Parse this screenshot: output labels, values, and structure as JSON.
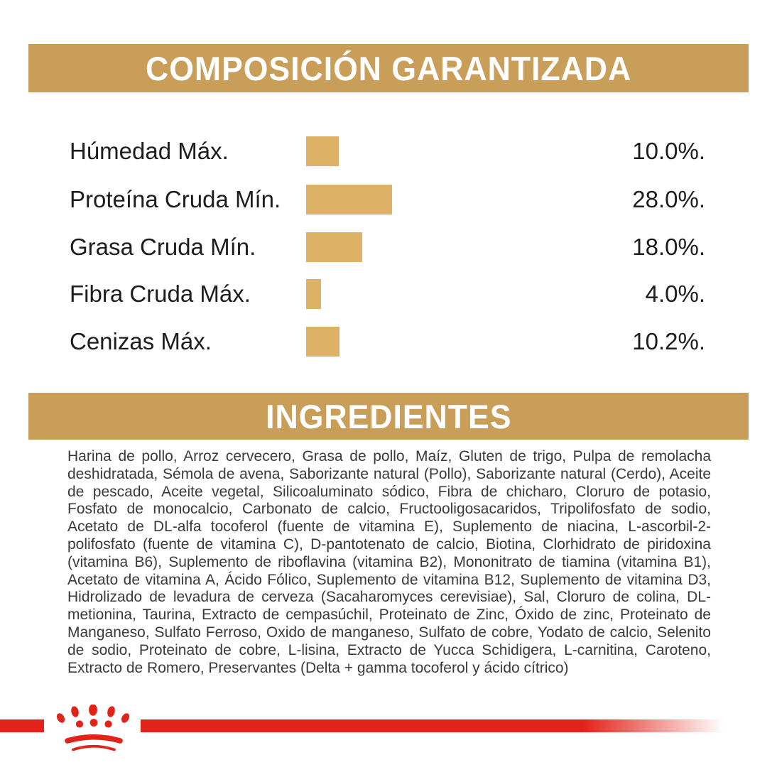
{
  "theme": {
    "banner_bg": "#C89E58",
    "banner_text_color": "#FFFFFF",
    "label_text_color": "#1D1D1D",
    "body_text_color": "#3A3A3A",
    "brand_red": "#E2231A"
  },
  "composition": {
    "title": "COMPOSICIÓN GARANTIZADA"
  },
  "chart_data": {
    "type": "bar",
    "orientation": "horizontal",
    "title": "COMPOSICIÓN GARANTIZADA",
    "categories": [
      "Húmedad Máx.",
      "Proteína Cruda Mín.",
      "Grasa Cruda Mín.",
      "Fibra Cruda Máx.",
      "Cenizas Máx."
    ],
    "values": [
      10.0,
      28.0,
      18.0,
      4.0,
      10.2
    ],
    "value_labels": [
      "10.0%.",
      "28.0%.",
      "18.0%.",
      "4.0%.",
      "10.2%."
    ],
    "unit": "%",
    "bar_color": "#DDB166",
    "grid": false,
    "legend": false
  },
  "ingredients": {
    "title": "INGREDIENTES",
    "text": "Harina de pollo, Arroz cervecero, Grasa de pollo, Maíz, Gluten de trigo, Pulpa de remolacha deshidratada, Sémola de avena, Saborizante natural (Pollo), Saborizante natural (Cerdo), Aceite de pescado, Aceite vegetal, Silicoaluminato sódico, Fibra de chicharo, Cloruro de potasio, Fosfato de monocalcio, Carbonato de calcio, Fructooligosacaridos, Tripolifosfato de sodio, Acetato de DL-alfa tocoferol (fuente de vitamina E), Suplemento de niacina, L-ascorbil-2-polifosfato (fuente de vitamina C), D-pantotenato de calcio, Biotina, Clorhidrato de piridoxina (vitamina B6), Suplemento de riboflavina (vitamina B2), Mononitrato de tiamina (vitamina B1), Acetato de vitamina A, Ácido Fólico, Suplemento de vitamina B12, Suplemento de vitamina D3, Hidrolizado de levadura de cerveza (Sacaharomyces cerevisiae), Sal, Cloruro de colina, DL-metionina, Taurina, Extracto de cempasúchil, Proteinato de Zinc, Óxido de zinc, Proteinato de Manganeso, Sulfato Ferroso, Oxido de manganeso, Sulfato de cobre, Yodato de calcio, Selenito de sodio, Proteinato de cobre, L-lisina, Extracto de Yucca Schidigera, L-carnitina, Caroteno, Extracto de Romero, Preservantes (Delta + gamma tocoferol y ácido cítrico)"
  },
  "footer": {
    "logo_icon": "royal-canin-paw-icon",
    "stripe_color": "#E2231A"
  }
}
